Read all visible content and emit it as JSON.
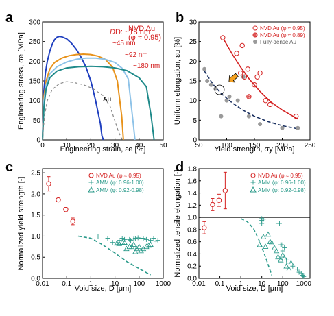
{
  "chart_data": [
    {
      "type": "line",
      "panel": "a",
      "xlabel": "Engineering strain, εe [%]",
      "ylabel": "Engineering stress, σe [MPa]",
      "xlim": [
        0,
        50
      ],
      "ylim": [
        0,
        300
      ],
      "xticks": [
        0,
        10,
        20,
        30,
        40,
        50
      ],
      "yticks": [
        0,
        50,
        100,
        150,
        200,
        250,
        300
      ],
      "grid": false,
      "legend": "NVD Au\n(φ ≈ 0.95)",
      "colors": [
        "#1f3fbf",
        "#e8921a",
        "#8fc3e8",
        "#1f8a8a",
        "#888888"
      ],
      "annotations": [
        "D: ~18 nm",
        "~45 nm",
        "~92 nm",
        "~180 nm",
        "Au"
      ],
      "series": [
        {
          "name": "D: ~18 nm",
          "x": [
            0,
            0.5,
            1.2,
            2,
            3,
            4,
            5,
            6,
            7,
            8,
            10,
            12,
            14,
            16,
            18,
            20,
            22,
            24,
            24.6,
            25.2
          ],
          "y": [
            0,
            120,
            170,
            200,
            225,
            243,
            255,
            261,
            263,
            262,
            257,
            246,
            230,
            210,
            185,
            150,
            100,
            40,
            10,
            0
          ]
        },
        {
          "name": "~45 nm",
          "x": [
            0,
            0.6,
            1.5,
            3,
            5,
            8,
            11,
            14,
            17,
            20,
            23,
            26,
            29,
            31,
            32.8,
            33.5
          ],
          "y": [
            0,
            110,
            150,
            180,
            197,
            208,
            214,
            217,
            218,
            217,
            213,
            205,
            185,
            150,
            60,
            0
          ]
        },
        {
          "name": "~92 nm",
          "x": [
            0,
            0.6,
            1.5,
            3,
            6,
            10,
            14,
            18,
            22,
            26,
            30,
            33,
            35.5,
            37.6,
            38.3
          ],
          "y": [
            0,
            100,
            140,
            168,
            186,
            198,
            205,
            208,
            208,
            205,
            197,
            182,
            155,
            40,
            0
          ]
        },
        {
          "name": "~180 nm",
          "x": [
            0,
            0.6,
            1.5,
            3,
            6,
            10,
            15,
            20,
            25,
            30,
            35,
            40,
            43,
            45,
            46.2
          ],
          "y": [
            0,
            85,
            130,
            158,
            175,
            183,
            186,
            187,
            186,
            183,
            176,
            158,
            135,
            60,
            0
          ]
        },
        {
          "name": "Au",
          "x": [
            0,
            0.8,
            2,
            4,
            7,
            10,
            13,
            17,
            21,
            25,
            28,
            31.5,
            33
          ],
          "y": [
            0,
            60,
            100,
            128,
            143,
            148,
            146,
            140,
            130,
            113,
            85,
            20,
            0
          ]
        }
      ]
    },
    {
      "type": "scatter",
      "panel": "b",
      "xlabel": "Yield strength, σy [MPa]",
      "ylabel": "Uniform elongation, εu [%]",
      "xlim": [
        50,
        250
      ],
      "ylim": [
        0,
        30
      ],
      "xticks": [
        50,
        100,
        150,
        200,
        250
      ],
      "yticks": [
        0,
        5,
        10,
        15,
        20,
        25,
        30
      ],
      "grid": false,
      "legend": "top-right",
      "colors": [
        "#d42020",
        "#d42020",
        "#9a9a9a",
        "#1a3060",
        "#f5a020"
      ],
      "series": [
        {
          "name": "NVD Au (φ ≈ 0.95)",
          "x": [
            93,
            118,
            125,
            128,
            132,
            138,
            150,
            155,
            160,
            170,
            178,
            225
          ],
          "y": [
            26,
            22,
            17,
            24,
            16,
            18,
            14,
            16,
            17,
            10,
            9,
            6
          ]
        },
        {
          "name": "NVD Au (φ ≈ 0.89)",
          "x": [
            140
          ],
          "y": [
            11
          ]
        },
        {
          "name": "Fully-dense Au",
          "x": [
            60,
            65,
            72,
            80,
            90,
            100,
            105,
            120,
            130,
            140,
            160,
            200,
            228
          ],
          "y": [
            18,
            15,
            14,
            13,
            6,
            10,
            11,
            10,
            16,
            6,
            4,
            3,
            3
          ]
        }
      ],
      "fits": [
        {
          "color": "#d42020",
          "style": "solid",
          "x": [
            95,
            110,
            125,
            140,
            160,
            180,
            200,
            228
          ],
          "y": [
            25.5,
            21.8,
            18.5,
            15.6,
            12.3,
            9.6,
            7.6,
            5.3
          ]
        },
        {
          "color": "#1a3060",
          "style": "dashed",
          "x": [
            60,
            75,
            90,
            110,
            130,
            150,
            175,
            200,
            228
          ],
          "y": [
            17.5,
            14.2,
            11.8,
            9.4,
            7.5,
            6.0,
            4.6,
            3.6,
            2.8
          ]
        }
      ]
    },
    {
      "type": "scatter",
      "panel": "c",
      "xscale": "log",
      "xlabel": "Void size, D [μm]",
      "ylabel": "Normalized yield strength [-]",
      "xlim": [
        0.01,
        1000
      ],
      "ylim": [
        0,
        2.6
      ],
      "xticks": [
        "0.01",
        "0.1",
        "1",
        "10",
        "100",
        "1000"
      ],
      "yticks": [
        "0.0",
        "0.5",
        "1.0",
        "1.5",
        "2.0",
        "2.5"
      ],
      "grid": false,
      "legend": "top-right",
      "colors": [
        "#d42020",
        "#2a9a8a",
        "#2a9a8a",
        "#000000"
      ],
      "series": [
        {
          "name": "NVD Au (φ ≈ 0.95)",
          "x": [
            0.018,
            0.045,
            0.092,
            0.18
          ],
          "y": [
            2.24,
            1.86,
            1.63,
            1.35
          ],
          "err": [
            0.17,
            0.0,
            0.05,
            0.08
          ]
        },
        {
          "name": "AMM (φ: 0.96-1.00)",
          "x": [
            2,
            5,
            8,
            12,
            15,
            20,
            25,
            40,
            45,
            60,
            70,
            90,
            120,
            150,
            200,
            300,
            400,
            500,
            600
          ],
          "y": [
            1.0,
            0.95,
            0.85,
            0.8,
            0.9,
            0.95,
            0.92,
            0.92,
            0.9,
            0.93,
            0.95,
            0.96,
            0.95,
            0.95,
            0.92,
            0.9,
            0.95,
            0.88,
            0.9
          ]
        },
        {
          "name": "AMM (φ: 0.92-0.98)",
          "x": [
            12,
            15,
            20,
            25,
            30,
            40,
            50,
            60,
            70,
            80,
            100,
            120,
            150,
            200,
            250,
            300
          ],
          "y": [
            0.83,
            0.82,
            0.85,
            0.85,
            0.7,
            0.75,
            0.75,
            0.8,
            0.63,
            0.7,
            0.75,
            0.65,
            0.7,
            0.75,
            0.78,
            0.8
          ]
        }
      ],
      "reference_line": 1.0,
      "trend_dashed": {
        "x": [
          0.3,
          1,
          3,
          10,
          30,
          100,
          300
        ],
        "y": [
          1.0,
          0.95,
          0.8,
          0.6,
          0.4,
          0.23,
          0.08
        ]
      }
    },
    {
      "type": "scatter",
      "panel": "d",
      "xscale": "log",
      "xlabel": "Void size, D [μm]",
      "ylabel": "Normalized tensile elongation [-]",
      "xlim": [
        0.01,
        2000
      ],
      "ylim": [
        0,
        1.8
      ],
      "xticks": [
        "0.01",
        "0.1",
        "1",
        "10",
        "100",
        "1000"
      ],
      "yticks": [
        "0.0",
        "0.2",
        "0.4",
        "0.6",
        "0.8",
        "1.0",
        "1.2",
        "1.4",
        "1.6",
        "1.8"
      ],
      "grid": false,
      "legend": "top-right",
      "colors": [
        "#d42020",
        "#2a9a8a",
        "#2a9a8a",
        "#000000"
      ],
      "series": [
        {
          "name": "NVD Au (φ ≈ 0.95)",
          "x": [
            0.018,
            0.045,
            0.092,
            0.18
          ],
          "y": [
            0.83,
            1.21,
            1.28,
            1.44
          ],
          "err": [
            0.1,
            0.1,
            0.1,
            0.3
          ]
        },
        {
          "name": "AMM (φ: 0.96-1.00)",
          "x": [
            10,
            10,
            10,
            12,
            60,
            70,
            80,
            90,
            100,
            120,
            150,
            200,
            300,
            500,
            600,
            800,
            900,
            1000
          ],
          "y": [
            0.98,
            0.95,
            0.9,
            0.97,
            0.9,
            0.9,
            0.55,
            0.55,
            0.45,
            0.5,
            0.3,
            0.25,
            0.2,
            0.15,
            0.1,
            0.08,
            0.05,
            0.03
          ]
        },
        {
          "name": "AMM (φ: 0.92-0.98)",
          "x": [
            8,
            12,
            15,
            20,
            25,
            30,
            40,
            50,
            60,
            80,
            100,
            120,
            150,
            200,
            250
          ],
          "y": [
            0.55,
            0.68,
            0.52,
            0.72,
            0.6,
            0.58,
            0.5,
            0.45,
            0.35,
            0.3,
            0.38,
            0.33,
            0.2,
            0.15,
            0.25
          ]
        }
      ],
      "reference_line": 1.0,
      "trend_dashed": {
        "x": [
          1,
          2,
          4,
          8,
          15,
          30
        ],
        "y": [
          0.98,
          0.93,
          0.82,
          0.6,
          0.35,
          0.05
        ]
      }
    }
  ],
  "panels": {
    "a": {
      "letter": "a",
      "title_line1": "NVD Au",
      "title_line2": "(φ ≈ 0.95)",
      "labels": [
        "D: ~18 nm",
        "~45 nm",
        "~92 nm",
        "~180 nm",
        "Au"
      ],
      "xlabel": "Engineering strain, εe [%]",
      "ylabel": "Engineering stress, σe [MPa]"
    },
    "b": {
      "letter": "b",
      "legend": [
        "NVD Au (φ ≈ 0.95)",
        "NVD Au (φ ≈ 0.89)",
        "Fully-dense Au"
      ],
      "xlabel": "Yield strength, σy [MPa]",
      "ylabel": "Uniform elongation, εu [%]"
    },
    "c": {
      "letter": "c",
      "legend": [
        "NVD Au (φ ≈ 0.95)",
        "AMM (φ: 0.96-1.00)",
        "AMM (φ: 0.92-0.98)"
      ],
      "xlabel": "Void size, D [μm]",
      "ylabel": "Normalized yield strength [-]"
    },
    "d": {
      "letter": "d",
      "legend": [
        "NVD Au (φ ≈ 0.95)",
        "AMM (φ: 0.96-1.00)",
        "AMM (φ: 0.92-0.98)"
      ],
      "xlabel": "Void size, D [μm]",
      "ylabel": "Normalized tensile elongation [-]"
    }
  }
}
